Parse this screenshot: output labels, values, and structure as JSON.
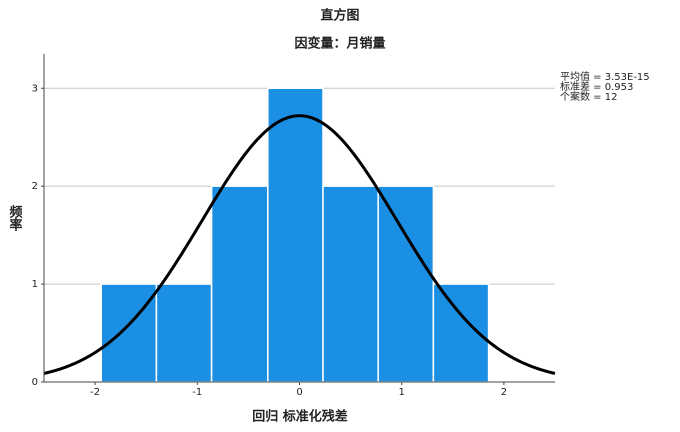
{
  "chart_data": {
    "type": "histogram",
    "title": "直方图",
    "subtitle": "因变量：月销量",
    "x_label": "回归 标准化残差",
    "y_label": "频率",
    "bins": [
      -1.94,
      -1.4,
      -0.86,
      -0.31,
      0.23,
      0.77,
      1.31,
      1.85
    ],
    "values": [
      1,
      1,
      2,
      3,
      2,
      2,
      1
    ],
    "color": "#1a8fe3",
    "xlim": [
      -2.5,
      2.5
    ],
    "xticks": [
      -2,
      -1,
      0,
      1,
      2
    ],
    "ylim": [
      0,
      3.35
    ],
    "yticks": [
      0,
      1,
      2,
      3
    ],
    "grid": true,
    "stats": {
      "mean": {
        "value": 3.53e-15,
        "label": "平均值 = 3.53E-15"
      },
      "std": {
        "value": 0.953,
        "label": "标准差 = 0.953"
      },
      "n": {
        "value": 12,
        "label": "个案数 = 12"
      }
    },
    "curve_color": "#000000"
  }
}
